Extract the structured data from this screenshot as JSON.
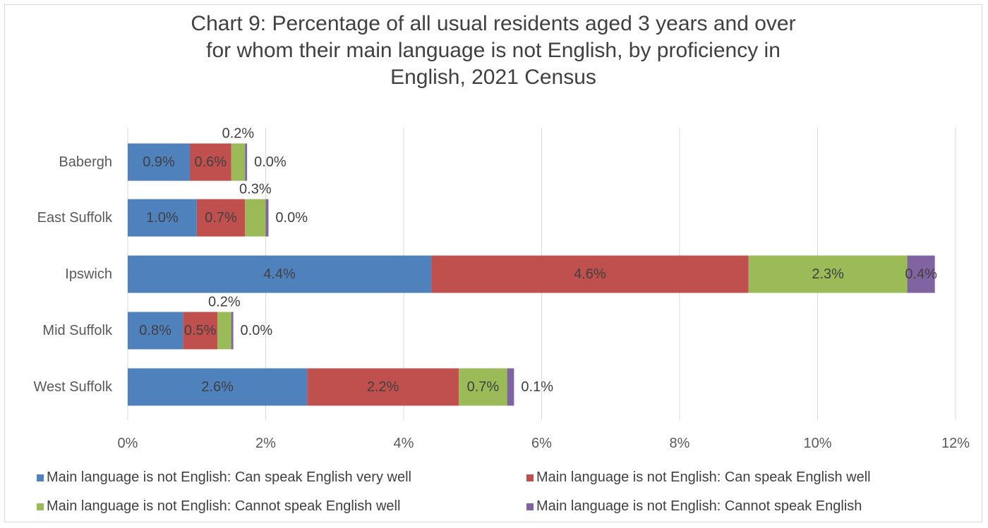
{
  "chart_data": {
    "type": "bar",
    "orientation": "horizontal",
    "stacked": true,
    "title_lines": [
      "Chart 9: Percentage of all usual residents aged 3 years and over",
      "for whom their main language is not English, by proficiency in",
      "English, 2021 Census"
    ],
    "categories": [
      "Babergh",
      "East Suffolk",
      "Ipswich",
      "Mid Suffolk",
      "West Suffolk"
    ],
    "series": [
      {
        "name": "Main language is not English: Can speak English very well",
        "color": "#4f81bd",
        "values": [
          0.9,
          1.0,
          4.4,
          0.8,
          2.6
        ],
        "labels": [
          "0.9%",
          "1.0%",
          "4.4%",
          "0.8%",
          "2.6%"
        ]
      },
      {
        "name": "Main language is not English: Can speak English well",
        "color": "#c0504d",
        "values": [
          0.6,
          0.7,
          4.6,
          0.5,
          2.2
        ],
        "labels": [
          "0.6%",
          "0.7%",
          "4.6%",
          "0.5%",
          "2.2%"
        ]
      },
      {
        "name": "Main language is not English: Cannot speak English well",
        "color": "#9bbb59",
        "values": [
          0.2,
          0.3,
          2.3,
          0.2,
          0.7
        ],
        "labels": [
          "0.2%",
          "0.3%",
          "2.3%",
          "0.2%",
          "0.7%"
        ]
      },
      {
        "name": "Main language is not English: Cannot speak English",
        "color": "#8064a2",
        "values": [
          0.03,
          0.04,
          0.4,
          0.03,
          0.1
        ],
        "labels": [
          "0.0%",
          "0.0%",
          "0.4%",
          "0.0%",
          "0.1%"
        ]
      }
    ],
    "x_ticks": [
      0,
      2,
      4,
      6,
      8,
      10,
      12
    ],
    "x_tick_labels": [
      "0%",
      "2%",
      "4%",
      "6%",
      "8%",
      "10%",
      "12%"
    ],
    "xlim": [
      0,
      12
    ],
    "grid": "vertical",
    "legend_position": "bottom"
  }
}
